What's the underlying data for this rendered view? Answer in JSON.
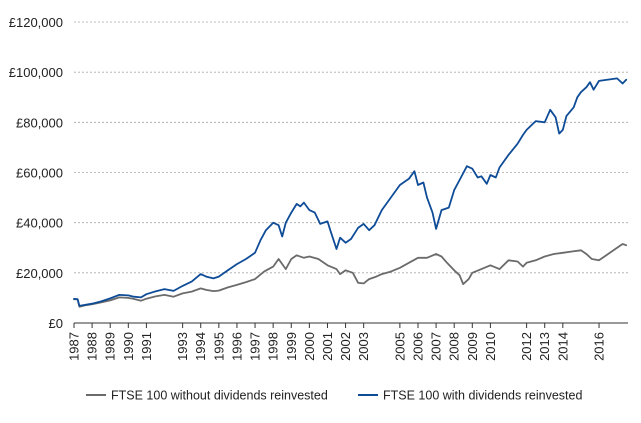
{
  "chart_data": {
    "type": "line",
    "title": "",
    "xlabel": "",
    "ylabel": "",
    "ylim": [
      0,
      120000
    ],
    "xlim": [
      1987.0,
      2017.6
    ],
    "grid": "horizontal dashed",
    "legend_position": "bottom",
    "y_ticks": [
      {
        "value": 0,
        "label": "£0"
      },
      {
        "value": 20000,
        "label": "£20,000"
      },
      {
        "value": 40000,
        "label": "£40,000"
      },
      {
        "value": 60000,
        "label": "£60,000"
      },
      {
        "value": 80000,
        "label": "£80,000"
      },
      {
        "value": 100000,
        "label": "£100,000"
      },
      {
        "value": 120000,
        "label": "£120,000"
      }
    ],
    "x_ticks": [
      {
        "value": 1987,
        "label": "1987"
      },
      {
        "value": 1988,
        "label": "1988"
      },
      {
        "value": 1989,
        "label": "1989"
      },
      {
        "value": 1990,
        "label": "1990"
      },
      {
        "value": 1991,
        "label": "1991"
      },
      {
        "value": 1993,
        "label": "1993"
      },
      {
        "value": 1994,
        "label": "1994"
      },
      {
        "value": 1995,
        "label": "1995"
      },
      {
        "value": 1996,
        "label": "1996"
      },
      {
        "value": 1997,
        "label": "1997"
      },
      {
        "value": 1998,
        "label": "1998"
      },
      {
        "value": 1999,
        "label": "1999"
      },
      {
        "value": 2000,
        "label": "2000"
      },
      {
        "value": 2001,
        "label": "2001"
      },
      {
        "value": 2002,
        "label": "2002"
      },
      {
        "value": 2003,
        "label": "2003"
      },
      {
        "value": 2005,
        "label": "2005"
      },
      {
        "value": 2006,
        "label": "2006"
      },
      {
        "value": 2007,
        "label": "2007"
      },
      {
        "value": 2008,
        "label": "2008"
      },
      {
        "value": 2009,
        "label": "2009"
      },
      {
        "value": 2010,
        "label": "2010"
      },
      {
        "value": 2012,
        "label": "2012"
      },
      {
        "value": 2013,
        "label": "2013"
      },
      {
        "value": 2014,
        "label": "2014"
      },
      {
        "value": 2016,
        "label": "2016"
      }
    ],
    "series": [
      {
        "name": "FTSE 100 without dividends reinvested",
        "color": "#6b6b6b",
        "points": [
          [
            1987.0,
            9500
          ],
          [
            1987.2,
            9400
          ],
          [
            1987.3,
            6500
          ],
          [
            1987.6,
            7000
          ],
          [
            1988.0,
            7500
          ],
          [
            1988.5,
            8200
          ],
          [
            1989.0,
            9000
          ],
          [
            1989.5,
            10200
          ],
          [
            1990.0,
            10000
          ],
          [
            1990.3,
            9600
          ],
          [
            1990.7,
            8900
          ],
          [
            1991.0,
            9700
          ],
          [
            1991.5,
            10600
          ],
          [
            1992.0,
            11200
          ],
          [
            1992.5,
            10500
          ],
          [
            1993.0,
            11800
          ],
          [
            1993.5,
            12500
          ],
          [
            1994.0,
            13800
          ],
          [
            1994.3,
            13200
          ],
          [
            1994.7,
            12700
          ],
          [
            1995.0,
            12900
          ],
          [
            1995.5,
            14200
          ],
          [
            1996.0,
            15200
          ],
          [
            1996.5,
            16300
          ],
          [
            1997.0,
            17500
          ],
          [
            1997.5,
            20500
          ],
          [
            1998.0,
            22500
          ],
          [
            1998.3,
            25500
          ],
          [
            1998.7,
            21500
          ],
          [
            1999.0,
            25500
          ],
          [
            1999.3,
            27000
          ],
          [
            1999.7,
            26000
          ],
          [
            2000.0,
            26500
          ],
          [
            2000.5,
            25500
          ],
          [
            2001.0,
            23000
          ],
          [
            2001.5,
            21500
          ],
          [
            2001.7,
            19500
          ],
          [
            2002.0,
            21000
          ],
          [
            2002.4,
            20000
          ],
          [
            2002.7,
            16000
          ],
          [
            2003.0,
            15800
          ],
          [
            2003.3,
            17500
          ],
          [
            2003.7,
            18500
          ],
          [
            2004.0,
            19500
          ],
          [
            2004.5,
            20500
          ],
          [
            2005.0,
            22000
          ],
          [
            2005.5,
            24000
          ],
          [
            2006.0,
            26000
          ],
          [
            2006.5,
            26000
          ],
          [
            2007.0,
            27500
          ],
          [
            2007.3,
            26500
          ],
          [
            2007.6,
            24000
          ],
          [
            2008.0,
            21000
          ],
          [
            2008.3,
            19000
          ],
          [
            2008.5,
            15500
          ],
          [
            2008.8,
            17500
          ],
          [
            2009.0,
            20000
          ],
          [
            2009.5,
            21500
          ],
          [
            2010.0,
            23000
          ],
          [
            2010.5,
            21500
          ],
          [
            2011.0,
            25000
          ],
          [
            2011.5,
            24500
          ],
          [
            2011.8,
            22500
          ],
          [
            2012.0,
            24000
          ],
          [
            2012.5,
            25000
          ],
          [
            2013.0,
            26500
          ],
          [
            2013.5,
            27500
          ],
          [
            2014.0,
            28000
          ],
          [
            2014.5,
            28500
          ],
          [
            2015.0,
            29000
          ],
          [
            2015.3,
            27500
          ],
          [
            2015.6,
            25500
          ],
          [
            2016.0,
            25000
          ],
          [
            2016.3,
            26500
          ],
          [
            2016.7,
            28500
          ],
          [
            2017.0,
            30000
          ],
          [
            2017.3,
            31500
          ],
          [
            2017.5,
            31000
          ]
        ]
      },
      {
        "name": "FTSE 100 with dividends reinvested",
        "color": "#0f4c97",
        "points": [
          [
            1987.0,
            9600
          ],
          [
            1987.2,
            9500
          ],
          [
            1987.3,
            6800
          ],
          [
            1987.6,
            7200
          ],
          [
            1988.0,
            7700
          ],
          [
            1988.5,
            8600
          ],
          [
            1989.0,
            9800
          ],
          [
            1989.5,
            11200
          ],
          [
            1990.0,
            11000
          ],
          [
            1990.3,
            10500
          ],
          [
            1990.7,
            10200
          ],
          [
            1991.0,
            11500
          ],
          [
            1991.5,
            12600
          ],
          [
            1992.0,
            13500
          ],
          [
            1992.5,
            12800
          ],
          [
            1993.0,
            14800
          ],
          [
            1993.5,
            16500
          ],
          [
            1994.0,
            19500
          ],
          [
            1994.3,
            18500
          ],
          [
            1994.7,
            17800
          ],
          [
            1995.0,
            18500
          ],
          [
            1995.5,
            21000
          ],
          [
            1996.0,
            23500
          ],
          [
            1996.5,
            25500
          ],
          [
            1997.0,
            28000
          ],
          [
            1997.3,
            33000
          ],
          [
            1997.6,
            37000
          ],
          [
            1998.0,
            40000
          ],
          [
            1998.3,
            39000
          ],
          [
            1998.5,
            34500
          ],
          [
            1998.7,
            40000
          ],
          [
            1999.0,
            44000
          ],
          [
            1999.3,
            47500
          ],
          [
            1999.5,
            46500
          ],
          [
            1999.7,
            48000
          ],
          [
            2000.0,
            45000
          ],
          [
            2000.3,
            44000
          ],
          [
            2000.6,
            39500
          ],
          [
            2001.0,
            40500
          ],
          [
            2001.2,
            36000
          ],
          [
            2001.5,
            29500
          ],
          [
            2001.7,
            34000
          ],
          [
            2002.0,
            32000
          ],
          [
            2002.3,
            33500
          ],
          [
            2002.7,
            38000
          ],
          [
            2003.0,
            39500
          ],
          [
            2003.3,
            37000
          ],
          [
            2003.6,
            39000
          ],
          [
            2004.0,
            45000
          ],
          [
            2004.5,
            50000
          ],
          [
            2005.0,
            55000
          ],
          [
            2005.5,
            57500
          ],
          [
            2005.8,
            60500
          ],
          [
            2006.0,
            55000
          ],
          [
            2006.3,
            56000
          ],
          [
            2006.5,
            50000
          ],
          [
            2006.8,
            44000
          ],
          [
            2007.0,
            37500
          ],
          [
            2007.3,
            45000
          ],
          [
            2007.7,
            46000
          ],
          [
            2008.0,
            53000
          ],
          [
            2008.3,
            57000
          ],
          [
            2008.7,
            62500
          ],
          [
            2009.0,
            61500
          ],
          [
            2009.3,
            58000
          ],
          [
            2009.5,
            58500
          ],
          [
            2009.8,
            55500
          ],
          [
            2010.0,
            59000
          ],
          [
            2010.3,
            58000
          ],
          [
            2010.5,
            62000
          ],
          [
            2011.0,
            67000
          ],
          [
            2011.5,
            71500
          ],
          [
            2011.8,
            75000
          ],
          [
            2012.0,
            77000
          ],
          [
            2012.5,
            80500
          ],
          [
            2013.0,
            80000
          ],
          [
            2013.3,
            85000
          ],
          [
            2013.6,
            82000
          ],
          [
            2013.8,
            75500
          ],
          [
            2014.0,
            77000
          ],
          [
            2014.2,
            82500
          ],
          [
            2014.6,
            86000
          ],
          [
            2014.8,
            90000
          ],
          [
            2015.0,
            92000
          ],
          [
            2015.3,
            94000
          ],
          [
            2015.5,
            96000
          ],
          [
            2015.7,
            93000
          ],
          [
            2016.0,
            96500
          ],
          [
            2017.0,
            97500
          ],
          [
            2017.3,
            95500
          ],
          [
            2017.5,
            97000
          ]
        ]
      }
    ]
  }
}
